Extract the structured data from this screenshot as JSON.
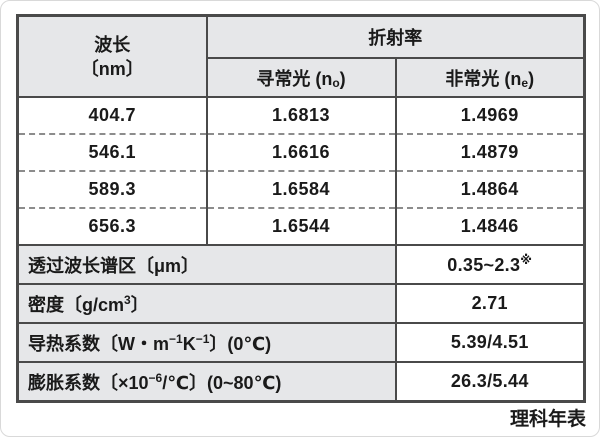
{
  "colors": {
    "header_fill": "#e6e7e9",
    "border": "#4a4a4a",
    "text": "#1a1a1a"
  },
  "table": {
    "header": {
      "wavelength_line1": "波长",
      "wavelength_line2": "〔nm〕",
      "refractive_index": "折射率",
      "ordinary_prefix": "寻常光 (n",
      "ordinary_sub": "o",
      "ordinary_suffix": ")",
      "extraordinary_prefix": "非常光 (n",
      "extraordinary_sub": "e",
      "extraordinary_suffix": ")"
    },
    "rows": [
      {
        "wavelength": "404.7",
        "no": "1.6813",
        "ne": "1.4969"
      },
      {
        "wavelength": "546.1",
        "no": "1.6616",
        "ne": "1.4879"
      },
      {
        "wavelength": "589.3",
        "no": "1.6584",
        "ne": "1.4864"
      },
      {
        "wavelength": "656.3",
        "no": "1.6544",
        "ne": "1.4846"
      }
    ],
    "properties": {
      "transmission": {
        "label": "透过波长谱区〔μm〕",
        "value": "0.35~2.3",
        "value_sup": "※"
      },
      "density": {
        "label_p1": "密度〔g/cm",
        "label_sup": "3",
        "label_p2": "〕",
        "value": "2.71"
      },
      "thermal": {
        "label_p1": "导热系数〔W・m",
        "sup1": "−1",
        "label_p2": "K",
        "sup2": "−1",
        "label_p3": "〕(0℃)",
        "value": "5.39/4.51"
      },
      "expansion": {
        "label_p1": "膨胀系数〔×10",
        "sup1": "−6",
        "label_p2": "/℃〕(0~80℃)",
        "value": "26.3/5.44"
      }
    }
  },
  "footer": {
    "source": "理科年表"
  },
  "chart_data": {
    "type": "table",
    "title": "折射率",
    "columns": [
      "波长〔nm〕",
      "寻常光 (no)",
      "非常光 (ne)"
    ],
    "rows": [
      [
        404.7,
        1.6813,
        1.4969
      ],
      [
        546.1,
        1.6616,
        1.4879
      ],
      [
        589.3,
        1.6584,
        1.4864
      ],
      [
        656.3,
        1.6544,
        1.4846
      ]
    ],
    "properties": [
      {
        "label": "透过波长谱区〔μm〕",
        "value": "0.35~2.3※"
      },
      {
        "label": "密度〔g/cm3〕",
        "value": "2.71"
      },
      {
        "label": "导热系数〔W・m−1K−1〕(0℃)",
        "value": "5.39/4.51"
      },
      {
        "label": "膨胀系数〔×10−6/℃〕(0~80℃)",
        "value": "26.3/5.44"
      }
    ],
    "source": "理科年表"
  }
}
